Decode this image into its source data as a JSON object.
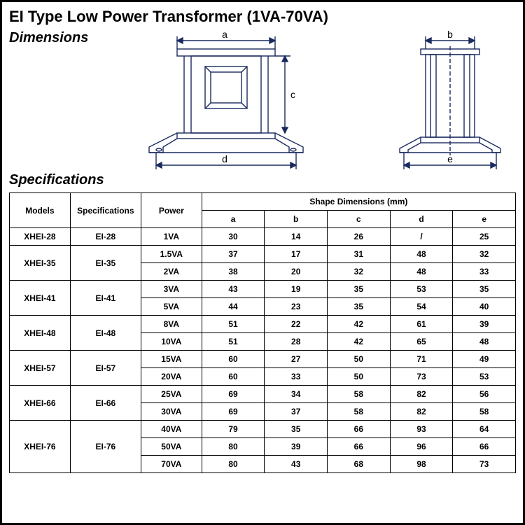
{
  "title": "EI Type Low Power Transformer (1VA-70VA)",
  "dimensions_heading": "Dimensions",
  "specifications_heading": "Specifications",
  "diagram": {
    "labels": {
      "a": "a",
      "b": "b",
      "c": "c",
      "d": "d",
      "e": "e"
    },
    "stroke": "#1a2a5e",
    "stroke_width": 1.4
  },
  "table": {
    "headers": {
      "models": "Models",
      "specifications": "Specifications",
      "power": "Power",
      "shape_dims": "Shape Dimensions (mm)",
      "a": "a",
      "b": "b",
      "c": "c",
      "d": "d",
      "e": "e"
    },
    "groups": [
      {
        "model": "XHEI-28",
        "spec": "EI-28",
        "rows": [
          {
            "power": "1VA",
            "a": "30",
            "b": "14",
            "c": "26",
            "d": "/",
            "e": "25"
          }
        ]
      },
      {
        "model": "XHEI-35",
        "spec": "EI-35",
        "rows": [
          {
            "power": "1.5VA",
            "a": "37",
            "b": "17",
            "c": "31",
            "d": "48",
            "e": "32"
          },
          {
            "power": "2VA",
            "a": "38",
            "b": "20",
            "c": "32",
            "d": "48",
            "e": "33"
          }
        ]
      },
      {
        "model": "XHEI-41",
        "spec": "EI-41",
        "rows": [
          {
            "power": "3VA",
            "a": "43",
            "b": "19",
            "c": "35",
            "d": "53",
            "e": "35"
          },
          {
            "power": "5VA",
            "a": "44",
            "b": "23",
            "c": "35",
            "d": "54",
            "e": "40"
          }
        ]
      },
      {
        "model": "XHEI-48",
        "spec": "EI-48",
        "rows": [
          {
            "power": "8VA",
            "a": "51",
            "b": "22",
            "c": "42",
            "d": "61",
            "e": "39"
          },
          {
            "power": "10VA",
            "a": "51",
            "b": "28",
            "c": "42",
            "d": "65",
            "e": "48"
          }
        ]
      },
      {
        "model": "XHEI-57",
        "spec": "EI-57",
        "rows": [
          {
            "power": "15VA",
            "a": "60",
            "b": "27",
            "c": "50",
            "d": "71",
            "e": "49"
          },
          {
            "power": "20VA",
            "a": "60",
            "b": "33",
            "c": "50",
            "d": "73",
            "e": "53"
          }
        ]
      },
      {
        "model": "XHEI-66",
        "spec": "EI-66",
        "rows": [
          {
            "power": "25VA",
            "a": "69",
            "b": "34",
            "c": "58",
            "d": "82",
            "e": "56"
          },
          {
            "power": "30VA",
            "a": "69",
            "b": "37",
            "c": "58",
            "d": "82",
            "e": "58"
          }
        ]
      },
      {
        "model": "XHEI-76",
        "spec": "EI-76",
        "rows": [
          {
            "power": "40VA",
            "a": "79",
            "b": "35",
            "c": "66",
            "d": "93",
            "e": "64"
          },
          {
            "power": "50VA",
            "a": "80",
            "b": "39",
            "c": "66",
            "d": "96",
            "e": "66"
          },
          {
            "power": "70VA",
            "a": "80",
            "b": "43",
            "c": "68",
            "d": "98",
            "e": "73"
          }
        ]
      }
    ]
  }
}
